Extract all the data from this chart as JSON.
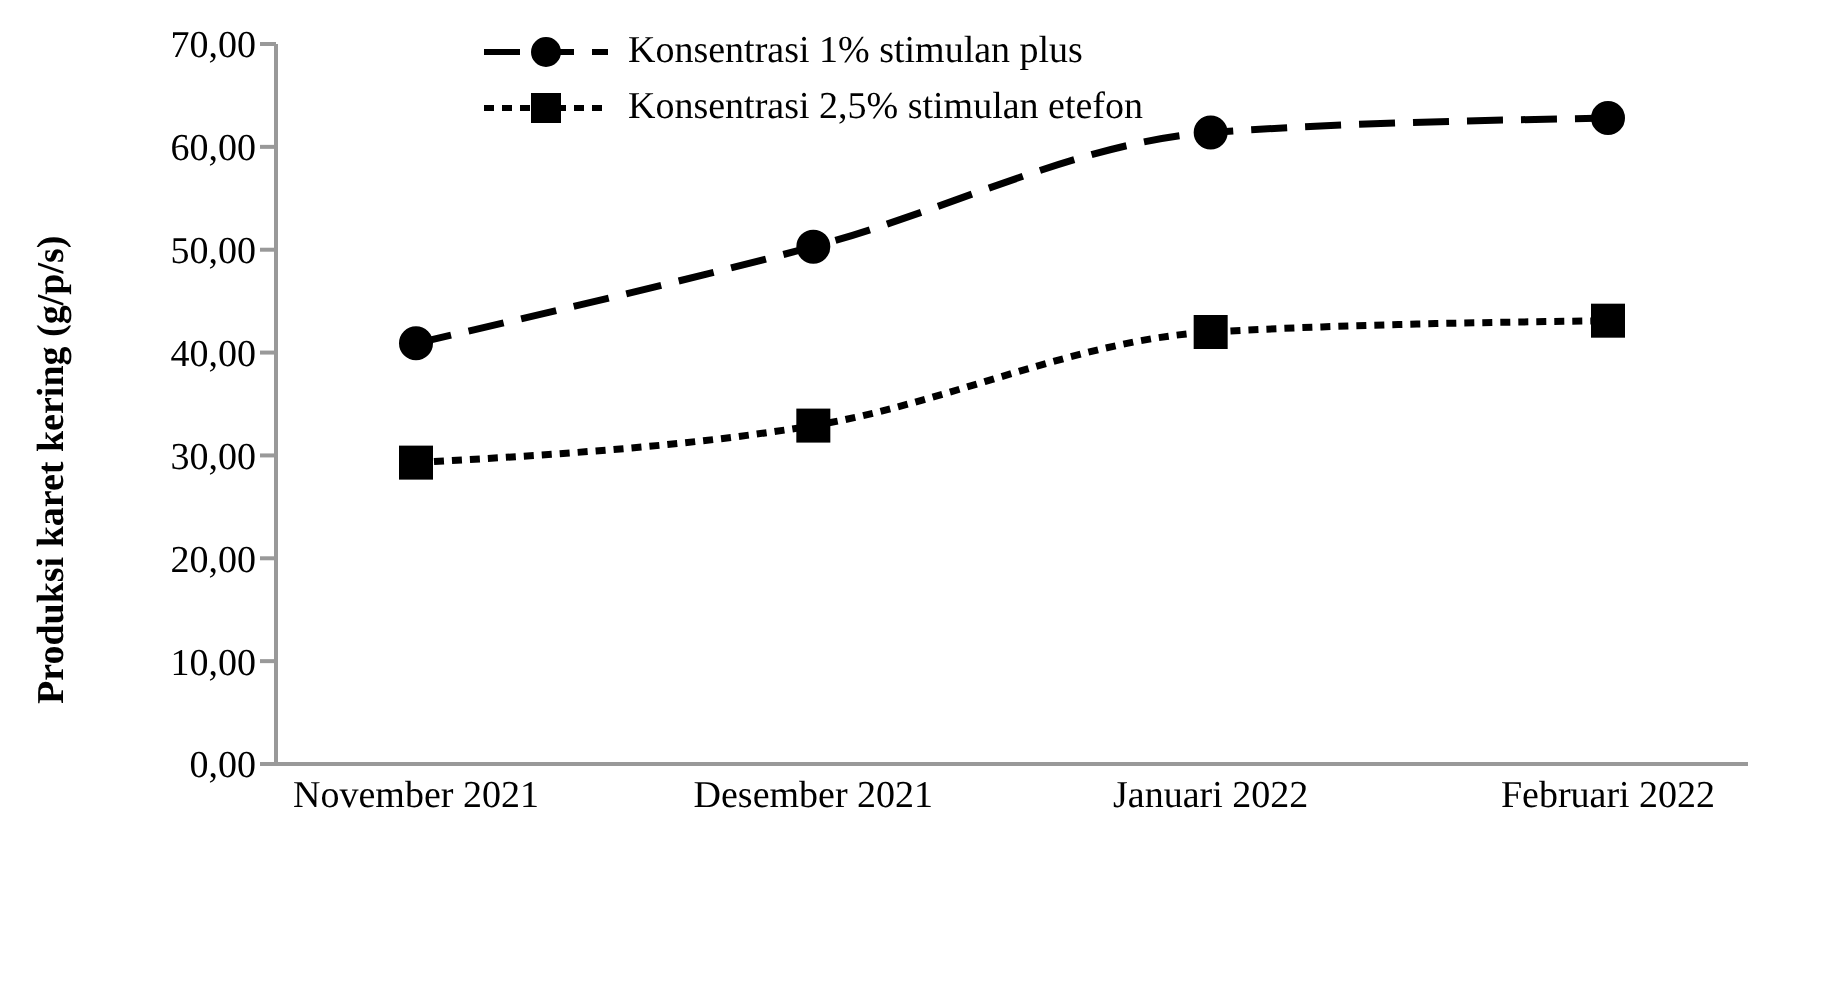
{
  "chart_data": {
    "type": "line",
    "ylabel": "Produksi karet kering (g/p/s)",
    "categories": [
      "November 2021",
      "Desember 2021",
      "Januari 2022",
      "Februari 2022"
    ],
    "series": [
      {
        "name": "Konsentrasi 1% stimulan plus",
        "color": "#000000",
        "marker": "circle",
        "line_style": "dashed",
        "values": [
          40.9,
          50.3,
          61.4,
          62.8
        ]
      },
      {
        "name": "Konsentrasi 2,5% stimulan etefon",
        "color": "#000000",
        "marker": "square",
        "line_style": "dotted",
        "values": [
          29.3,
          32.9,
          42.0,
          43.1
        ]
      }
    ],
    "ylim": [
      0,
      70
    ],
    "yticks": [
      {
        "value": 0,
        "label": "0,00"
      },
      {
        "value": 10,
        "label": "10,00"
      },
      {
        "value": 20,
        "label": "20,00"
      },
      {
        "value": 30,
        "label": "30,00"
      },
      {
        "value": 40,
        "label": "40,00"
      },
      {
        "value": 50,
        "label": "50,00"
      },
      {
        "value": 60,
        "label": "60,00"
      },
      {
        "value": 70,
        "label": "70,00"
      }
    ],
    "grid": false,
    "legend": "top left"
  }
}
